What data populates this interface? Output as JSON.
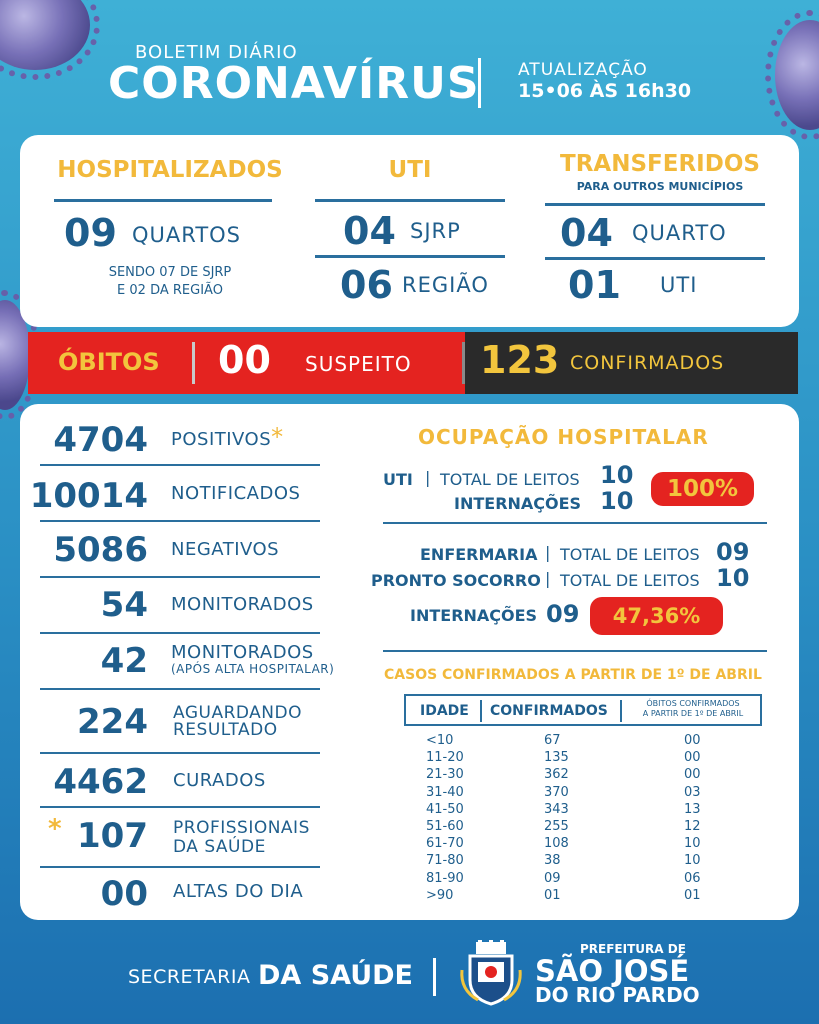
{
  "header": {
    "subtitle": "BOLETIM DIÁRIO",
    "title": "CORONAVÍRUS",
    "update_label": "ATUALIZAÇÃO",
    "update_date": "15•06 ÀS 16h30"
  },
  "hospital": {
    "hospitalizados": {
      "title": "HOSPITALIZADOS",
      "num": "09",
      "label": "QUARTOS",
      "note_line1": "SENDO 07 DE SJRP",
      "note_line2": "E 02 DA REGIÃO"
    },
    "uti": {
      "title": "UTI",
      "row1_num": "04",
      "row1_label": "SJRP",
      "row2_num": "06",
      "row2_label": "REGIÃO"
    },
    "transferidos": {
      "title": "TRANSFERIDOS",
      "subtitle": "PARA OUTROS MUNICÍPIOS",
      "row1_num": "04",
      "row1_label": "QUARTO",
      "row2_num": "01",
      "row2_label": "UTI"
    }
  },
  "obitos": {
    "title": "ÓBITOS",
    "suspeito_num": "00",
    "suspeito_label": "SUSPEITO",
    "confirmados_num": "123",
    "confirmados_label": "CONFIRMADOS"
  },
  "stats": [
    {
      "num": "4704",
      "label": "POSITIVOS",
      "sub": ""
    },
    {
      "num": "10014",
      "label": "NOTIFICADOS",
      "sub": ""
    },
    {
      "num": "5086",
      "label": "NEGATIVOS",
      "sub": ""
    },
    {
      "num": "54",
      "label": "MONITORADOS",
      "sub": ""
    },
    {
      "num": "42",
      "label": "MONITORADOS",
      "sub": "(APÓS ALTA HOSPITALAR)"
    },
    {
      "num": "224",
      "label": "AGUARDANDO",
      "sub": "RESULTADO"
    },
    {
      "num": "4462",
      "label": "CURADOS",
      "sub": ""
    },
    {
      "num": "107",
      "label": "PROFISSIONAIS",
      "sub": "DA SAÚDE"
    },
    {
      "num": "00",
      "label": "ALTAS DO DIA",
      "sub": ""
    }
  ],
  "asterisk": "*",
  "ocupacao": {
    "title": "OCUPAÇÃO HOSPITALAR",
    "uti_label": "UTI",
    "total_leitos_label": "TOTAL DE LEITOS",
    "uti_total": "10",
    "internacoes_label": "INTERNAÇÕES",
    "uti_internacoes": "10",
    "uti_pct": "100%",
    "enfermaria_label": "ENFERMARIA",
    "enfermaria_total": "09",
    "ps_label": "PRONTO SOCORRO",
    "ps_total": "10",
    "enf_internacoes": "09",
    "enf_pct": "47,36%"
  },
  "casos": {
    "title": "CASOS CONFIRMADOS A PARTIR DE 1º DE ABRIL",
    "col_idade": "IDADE",
    "col_confirmados": "CONFIRMADOS",
    "col_obitos_l1": "ÓBITOS CONFIRMADOS",
    "col_obitos_l2": "A PARTIR DE 1º DE ABRIL",
    "rows": [
      {
        "idade": "<10",
        "conf": "67",
        "obitos": "00"
      },
      {
        "idade": "11-20",
        "conf": "135",
        "obitos": "00"
      },
      {
        "idade": "21-30",
        "conf": "362",
        "obitos": "00"
      },
      {
        "idade": "31-40",
        "conf": "370",
        "obitos": "03"
      },
      {
        "idade": "41-50",
        "conf": "343",
        "obitos": "13"
      },
      {
        "idade": "51-60",
        "conf": "255",
        "obitos": "12"
      },
      {
        "idade": "61-70",
        "conf": "108",
        "obitos": "10"
      },
      {
        "idade": "71-80",
        "conf": "38",
        "obitos": "10"
      },
      {
        "idade": "81-90",
        "conf": "09",
        "obitos": "06"
      },
      {
        "idade": ">90",
        "conf": "01",
        "obitos": "01"
      }
    ]
  },
  "footer": {
    "secretaria": "SECRETARIA",
    "saude": "DA SAÚDE",
    "prefeitura": "PREFEITURA DE",
    "city1": "SÃO JOSÉ",
    "city2": "DO RIO PARDO"
  },
  "colors": {
    "accent_yellow": "#f2b93b",
    "red": "#e42320",
    "navy": "#1f5e8c"
  }
}
